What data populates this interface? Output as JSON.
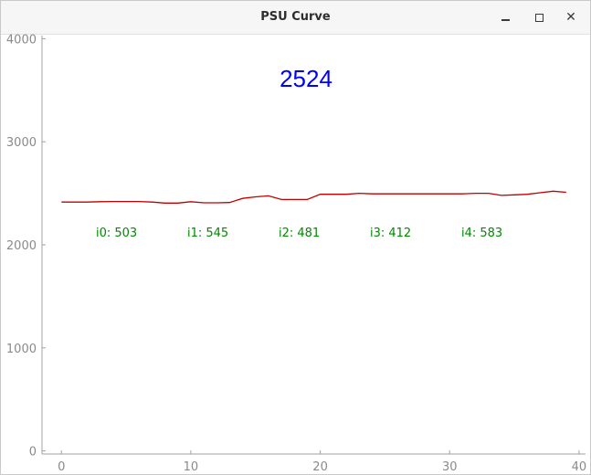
{
  "window": {
    "title": "PSU Curve",
    "minimize_icon": "minimize-icon",
    "maximize_icon": "maximize-icon",
    "close_icon": "close-icon"
  },
  "display": {
    "current_value": "2524",
    "value_color": "#0000ff"
  },
  "sensors": [
    {
      "label": "i0: 503"
    },
    {
      "label": "i1: 545"
    },
    {
      "label": "i2: 481"
    },
    {
      "label": "i3: 412"
    },
    {
      "label": "i4: 583"
    }
  ],
  "chart_data": {
    "type": "line",
    "title": "",
    "xlabel": "",
    "ylabel": "",
    "xlim": [
      -1.5,
      40.5
    ],
    "ylim": [
      -30,
      4030
    ],
    "x_ticks": [
      0,
      10,
      20,
      30,
      40
    ],
    "y_ticks": [
      0,
      1000,
      2000,
      3000,
      4000
    ],
    "grid": false,
    "series": [
      {
        "color": "#c00000",
        "x": [
          0,
          1,
          2,
          3,
          4,
          5,
          6,
          7,
          8,
          9,
          10,
          11,
          12,
          13,
          14,
          15,
          16,
          17,
          18,
          19,
          20,
          21,
          22,
          23,
          24,
          25,
          26,
          27,
          28,
          29,
          30,
          31,
          32,
          33,
          34,
          35,
          36,
          37,
          38,
          39
        ],
        "y": [
          2415,
          2415,
          2415,
          2418,
          2420,
          2420,
          2420,
          2415,
          2405,
          2405,
          2418,
          2408,
          2408,
          2410,
          2450,
          2465,
          2475,
          2440,
          2440,
          2440,
          2490,
          2490,
          2490,
          2500,
          2495,
          2495,
          2495,
          2495,
          2495,
          2495,
          2495,
          2495,
          2500,
          2500,
          2480,
          2485,
          2490,
          2505,
          2520,
          2510
        ]
      }
    ]
  }
}
